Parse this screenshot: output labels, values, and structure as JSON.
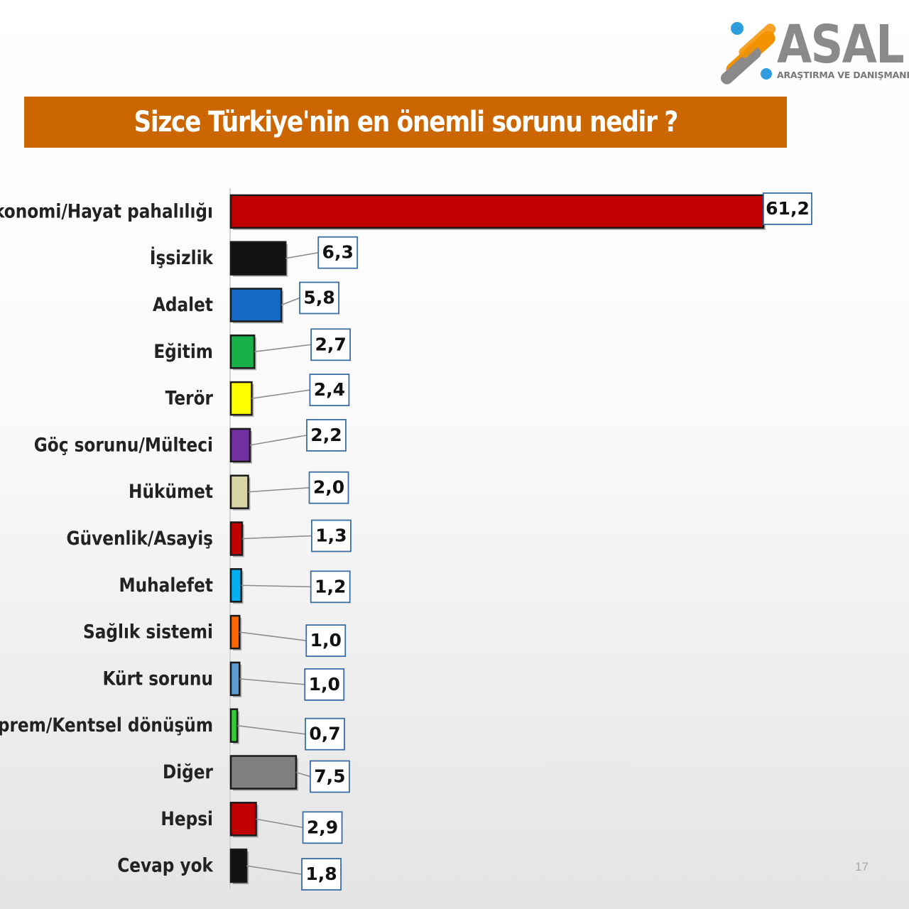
{
  "brand": {
    "name": "ASAL",
    "tagline": "ARAŞTIRMA VE DANIŞMANLIK",
    "colors": {
      "orange": "#f39200",
      "blue": "#2f9ee0",
      "grey": "#8a8a8a"
    }
  },
  "title": "Sizce Türkiye'nin en önemli sorunu nedir ?",
  "page_number": "17",
  "chart_data": {
    "type": "bar",
    "orientation": "horizontal",
    "title": "Sizce Türkiye'nin en önemli sorunu nedir ?",
    "xlabel": "",
    "ylabel": "",
    "grid": false,
    "legend": "none",
    "xlim": [
      0,
      61.2
    ],
    "categories": [
      "Ekonomi/Hayat pahalılığı",
      "İşsizlik",
      "Adalet",
      "Eğitim",
      "Terör",
      "Göç sorunu/Mülteci",
      "Hükümet",
      "Güvenlik/Asayiş",
      "Muhalefet",
      "Sağlık sistemi",
      "Kürt sorunu",
      "Deprem/Kentsel dönüşüm",
      "Diğer",
      "Hepsi",
      "Cevap yok"
    ],
    "values": [
      61.2,
      6.3,
      5.8,
      2.7,
      2.4,
      2.2,
      2.0,
      1.3,
      1.2,
      1.0,
      1.0,
      0.7,
      7.5,
      2.9,
      1.8
    ],
    "value_labels": [
      "61,2",
      "6,3",
      "5,8",
      "2,7",
      "2,4",
      "2,2",
      "2,0",
      "1,3",
      "1,2",
      "1,0",
      "1,0",
      "0,7",
      "7,5",
      "2,9",
      "1,8"
    ],
    "colors": [
      "#c00000",
      "#111111",
      "#1569c7",
      "#19b04a",
      "#ffff00",
      "#7030a0",
      "#d9d4a8",
      "#c00000",
      "#00b0f0",
      "#ff6600",
      "#5b9bd5",
      "#33cc33",
      "#808080",
      "#c00000",
      "#111111"
    ]
  }
}
